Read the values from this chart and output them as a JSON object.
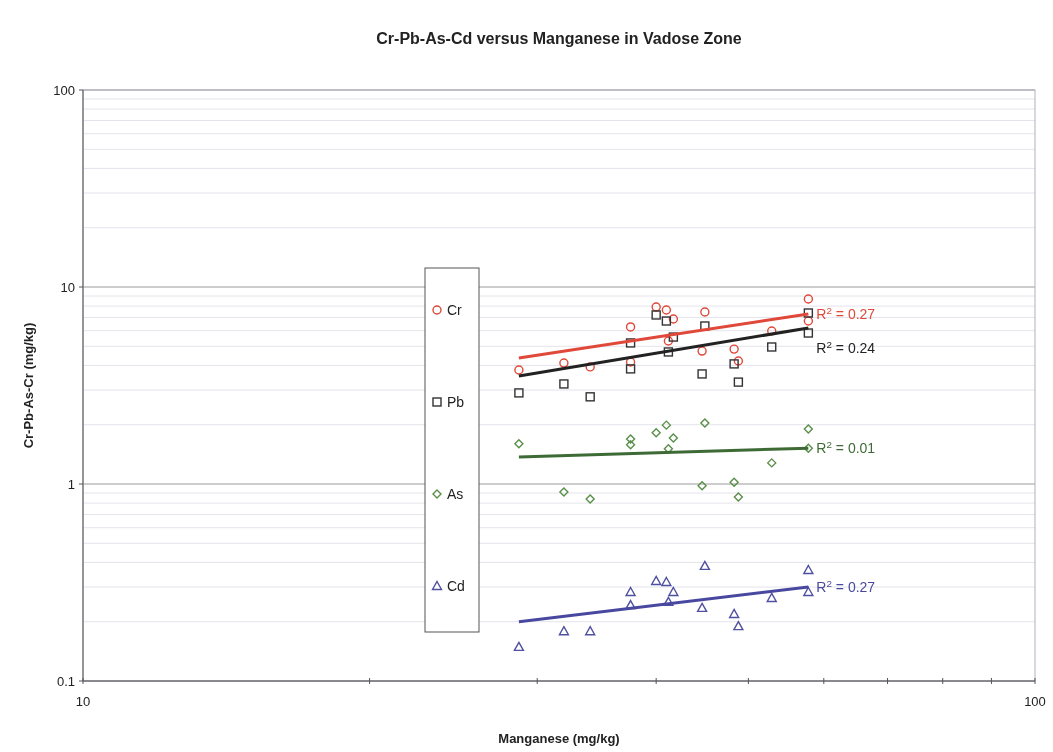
{
  "chart_data": {
    "type": "scatter",
    "title": "Cr-Pb-As-Cd versus Manganese in Vadose Zone",
    "xlabel": "Manganese (mg/kg)",
    "ylabel": "Cr-Pb-As-Cr (mg/kg)",
    "log": "xy",
    "grid": "y",
    "legend": "left",
    "xlim": [
      10,
      100
    ],
    "xticks": [
      10,
      {
        "value": 20,
        "label": null
      },
      {
        "value": 30,
        "label": null
      },
      {
        "value": 40,
        "label": null
      },
      {
        "value": 50,
        "label": null
      },
      {
        "value": 60,
        "label": null
      },
      {
        "value": 70,
        "label": null
      },
      {
        "value": 80,
        "label": null
      },
      {
        "value": 90,
        "label": null
      },
      100
    ],
    "ylim": [
      0.1,
      100
    ],
    "yticks": [
      0.1,
      1,
      10,
      100
    ],
    "series": [
      {
        "name": "Cr",
        "color": "#e0483a",
        "marker": "circle",
        "x": [
          28.7,
          32.0,
          34.1,
          37.6,
          37.6,
          40.0,
          41.0,
          41.7,
          41.2,
          45.0,
          44.7,
          48.3,
          48.8,
          52.9,
          57.8,
          57.8
        ],
        "values": [
          3.79,
          4.11,
          3.93,
          6.27,
          4.16,
          7.91,
          7.64,
          6.88,
          5.32,
          7.47,
          4.73,
          4.84,
          4.21,
          5.98,
          8.69,
          6.72
        ]
      },
      {
        "name": "Pb",
        "color": "#333333",
        "marker": "square",
        "x": [
          28.7,
          32.0,
          34.1,
          37.6,
          37.6,
          40.0,
          41.0,
          41.7,
          41.2,
          45.0,
          44.7,
          48.3,
          48.8,
          52.9,
          57.8,
          57.8
        ],
        "values": [
          2.9,
          3.22,
          2.77,
          5.2,
          3.84,
          7.21,
          6.72,
          5.57,
          4.68,
          6.34,
          3.62,
          4.07,
          3.29,
          4.96,
          7.38,
          5.84
        ]
      },
      {
        "name": "As",
        "color": "#5a8f4a",
        "marker": "diamond",
        "x": [
          28.7,
          32.0,
          34.1,
          37.6,
          37.6,
          40.0,
          41.0,
          41.7,
          41.2,
          45.0,
          44.7,
          48.3,
          48.8,
          52.9,
          57.8,
          57.8
        ],
        "values": [
          1.6,
          0.91,
          0.84,
          1.69,
          1.58,
          1.82,
          1.99,
          1.71,
          1.51,
          2.04,
          0.98,
          1.02,
          0.86,
          1.28,
          1.9,
          1.52
        ]
      },
      {
        "name": "Cd",
        "color": "#5050a0",
        "marker": "triangle",
        "x": [
          28.7,
          32.0,
          34.1,
          37.6,
          37.6,
          40.0,
          41.0,
          41.7,
          41.2,
          45.0,
          44.7,
          48.3,
          48.8,
          52.9,
          57.8,
          57.8
        ],
        "values": [
          0.149,
          0.179,
          0.179,
          0.283,
          0.243,
          0.322,
          0.318,
          0.283,
          0.252,
          0.384,
          0.235,
          0.219,
          0.19,
          0.264,
          0.366,
          0.283
        ]
      },
      {
        "type": "line",
        "color": "#e0483a",
        "marker": "none",
        "x": [
          28.7,
          57.8
        ],
        "values": [
          4.36,
          7.29
        ]
      },
      {
        "type": "line",
        "color": "#222222",
        "marker": "none",
        "x": [
          28.7,
          57.8
        ],
        "values": [
          3.53,
          6.2
        ]
      },
      {
        "type": "line",
        "color": "#3e6b35",
        "marker": "none",
        "x": [
          28.7,
          57.8
        ],
        "values": [
          1.37,
          1.52
        ]
      },
      {
        "type": "line",
        "color": "#4848a0",
        "marker": "none",
        "x": [
          28.7,
          57.8
        ],
        "values": [
          0.2,
          0.3
        ]
      }
    ],
    "annotations": [
      "R$^{2}$ = 0.27",
      "R$^{2}$ = 0.24",
      "R$^{2}$ = 0.01",
      "R$^{2}$ = 0.27"
    ]
  }
}
